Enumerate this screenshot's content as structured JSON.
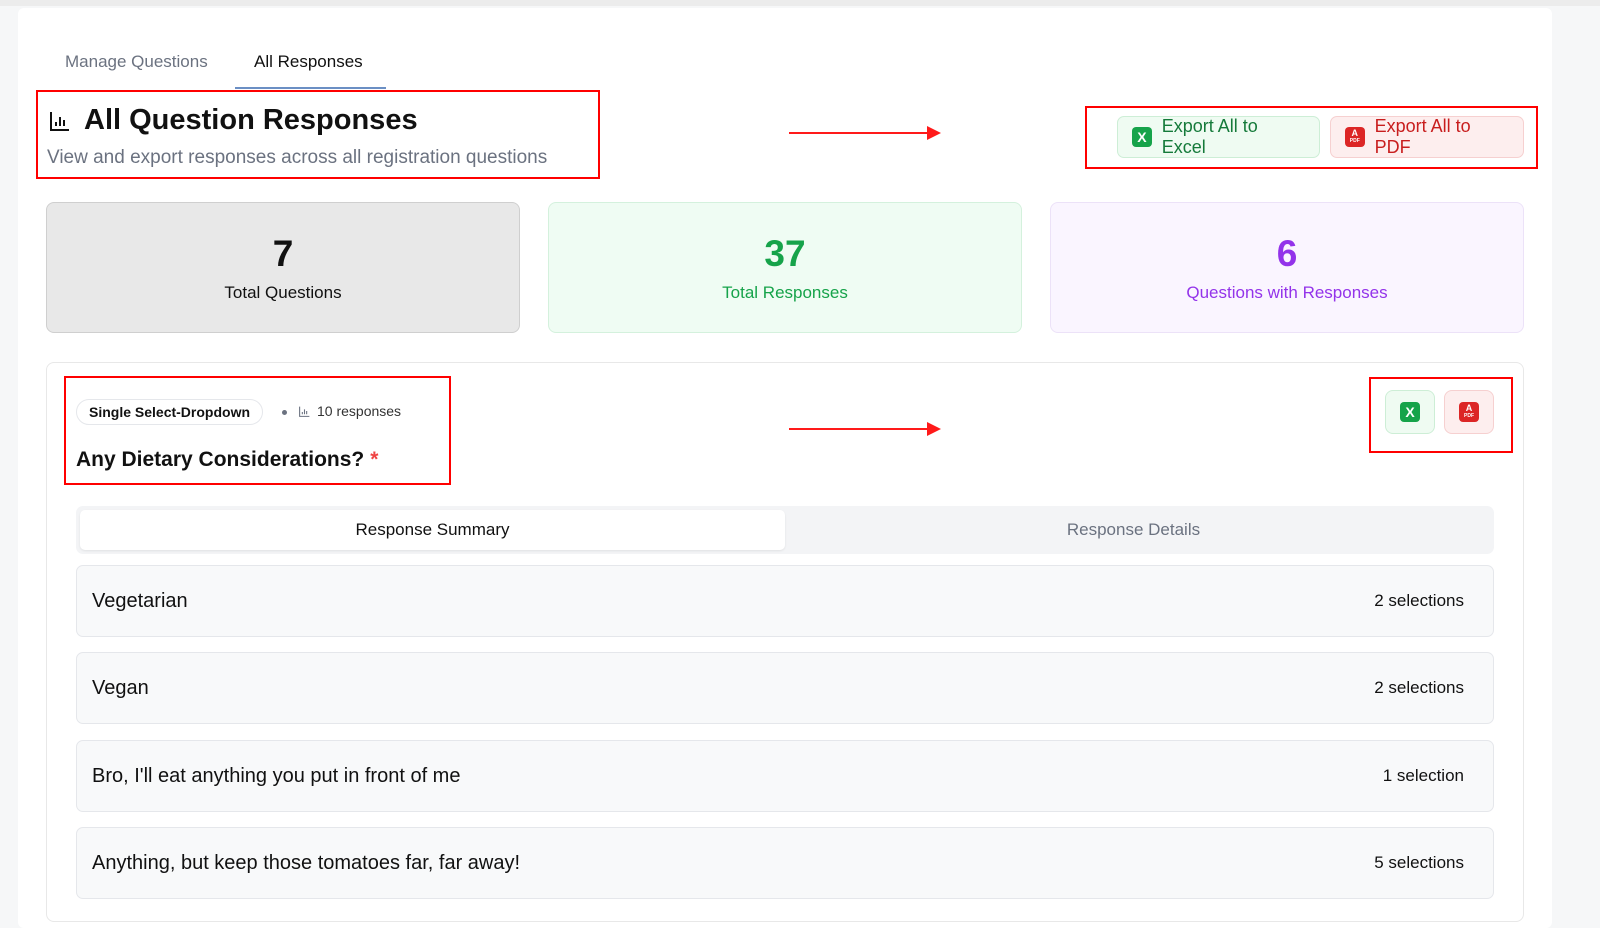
{
  "tabs": [
    {
      "label": "Manage Questions",
      "active": false
    },
    {
      "label": "All Responses",
      "active": true
    }
  ],
  "header": {
    "icon": "bar-chart-icon",
    "title": "All Question Responses",
    "subtitle": "View and export responses across all registration questions"
  },
  "actions": {
    "excel_label": "Export All to Excel",
    "pdf_label": "Export All to PDF",
    "excel_color": "#16a34a",
    "pdf_color": "#dc2626"
  },
  "stats": [
    {
      "value": "7",
      "label": "Total Questions"
    },
    {
      "value": "37",
      "label": "Total Responses",
      "color": "#16a34a"
    },
    {
      "value": "6",
      "label": "Questions with Responses",
      "color": "#9333ea"
    }
  ],
  "question": {
    "type": "Single Select-Dropdown",
    "responses": "10 responses",
    "title": "Any Dietary Considerations?",
    "required_mark": "*",
    "tabs": [
      "Response Summary",
      "Response Details"
    ],
    "options": [
      {
        "label": "Vegetarian",
        "count": "2 selections"
      },
      {
        "label": "Vegan",
        "count": "2 selections"
      },
      {
        "label": "Bro, I'll eat anything you put in front of me",
        "count": "1 selection"
      },
      {
        "label": "Anything, but keep those tomatoes far, far away!",
        "count": "5 selections"
      }
    ]
  },
  "icons": {
    "excel": "X",
    "pdf_top": "A",
    "pdf_bottom": "PDF"
  }
}
